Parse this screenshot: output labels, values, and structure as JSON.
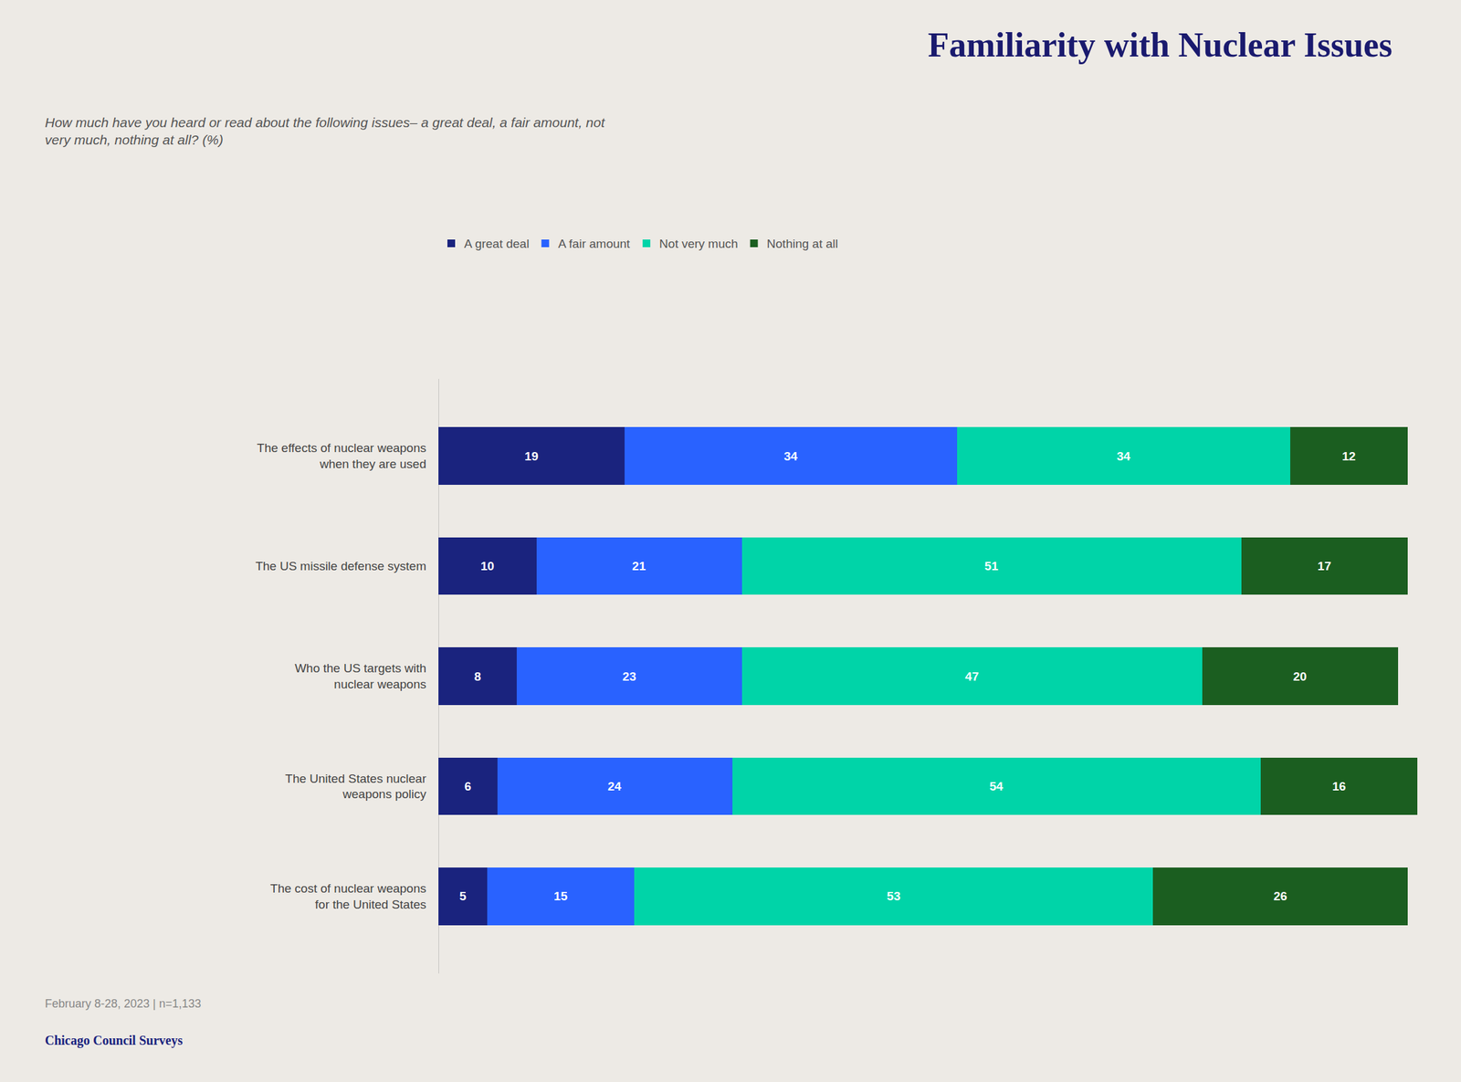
{
  "chart_data": {
    "type": "bar",
    "orientation": "horizontal",
    "stacked": true,
    "title": "Familiarity with Nuclear Issues",
    "subtitle": "How much have you heard or read about the following issues– a great deal, a fair amount, not\nvery much, nothing at all? (%)",
    "footnote": "February 8-28, 2023 | n=1,133",
    "source": "Chicago Council Surveys",
    "categories": [
      "The effects of nuclear weapons\nwhen they are used",
      "The US missile defense system",
      "Who the US targets with\nnuclear weapons",
      "The United States nuclear\nweapons policy",
      "The cost of nuclear weapons\nfor the United States"
    ],
    "series": [
      {
        "name": "A great deal",
        "color": "#1a237e",
        "values": [
          19,
          10,
          8,
          6,
          5
        ]
      },
      {
        "name": "A fair amount",
        "color": "#2962ff",
        "values": [
          34,
          21,
          23,
          24,
          15
        ]
      },
      {
        "name": "Not very much",
        "color": "#00d4a8",
        "values": [
          34,
          51,
          47,
          54,
          53
        ]
      },
      {
        "name": "Nothing at all",
        "color": "#1b5e20",
        "values": [
          12,
          17,
          20,
          16,
          26
        ]
      }
    ],
    "xlim": [
      0,
      100
    ],
    "data_labels": true,
    "tick_labels": "y",
    "grid": false,
    "legend": "top"
  }
}
